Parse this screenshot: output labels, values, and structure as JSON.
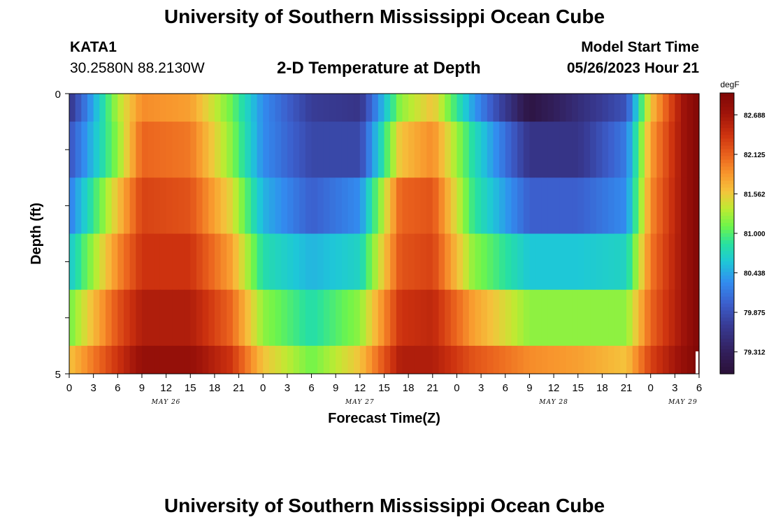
{
  "header": {
    "title": "University of Southern Mississippi Ocean Cube",
    "station_id": "KATA1",
    "coordinates": "30.2580N  88.2130W",
    "plot_title": "2-D Temperature at Depth",
    "model_start_label": "Model Start Time",
    "model_start_value": "05/26/2023 Hour 21"
  },
  "footer": {
    "title": "University of Southern Mississippi Ocean Cube"
  },
  "chart_data": {
    "type": "heatmap",
    "title": "2-D Temperature at Depth",
    "xlabel": "Forecast Time(Z)",
    "ylabel": "Depth (ft)",
    "ylim": [
      0,
      5
    ],
    "y_ticks": [
      "0",
      "5"
    ],
    "x_ticks": [
      "0",
      "3",
      "6",
      "9",
      "12",
      "15",
      "18",
      "21",
      "0",
      "3",
      "6",
      "9",
      "12",
      "15",
      "18",
      "21",
      "0",
      "3",
      "6",
      "9",
      "12",
      "15",
      "18",
      "21",
      "0",
      "3",
      "6"
    ],
    "day_labels": [
      "MAY 26",
      "MAY 27",
      "MAY 28",
      "MAY 29"
    ],
    "x_range_hours": [
      0,
      78
    ],
    "colorbar": {
      "unit": "degF",
      "min": 79.0,
      "max": 83.0,
      "ticks": [
        "82.688",
        "82.125",
        "81.562",
        "81.000",
        "80.438",
        "79.875",
        "79.312"
      ],
      "tick_values": [
        82.688,
        82.125,
        81.562,
        81.0,
        80.438,
        79.875,
        79.312
      ]
    },
    "rows": [
      {
        "depth_range": "0-0.5",
        "hours": [
          0,
          6,
          9,
          15,
          20,
          24,
          30,
          36,
          41,
          45,
          50,
          57,
          63,
          69,
          72,
          76,
          78
        ],
        "values": [
          79.6,
          81.3,
          81.9,
          81.8,
          81.1,
          80.3,
          79.7,
          79.6,
          81.2,
          81.6,
          80.4,
          79.1,
          79.5,
          79.9,
          81.6,
          82.7,
          83.0
        ]
      },
      {
        "depth_range": "0.5-1.5",
        "hours": [
          0,
          6,
          9,
          15,
          20,
          24,
          30,
          36,
          41,
          45,
          50,
          57,
          63,
          69,
          72,
          76,
          78
        ],
        "values": [
          79.9,
          81.2,
          82.1,
          82.0,
          81.2,
          80.3,
          79.8,
          79.8,
          81.6,
          81.9,
          80.8,
          79.6,
          79.6,
          80.2,
          81.8,
          82.7,
          83.0
        ]
      },
      {
        "depth_range": "1.5-2.5",
        "hours": [
          0,
          6,
          9,
          15,
          20,
          24,
          30,
          36,
          41,
          45,
          50,
          57,
          63,
          69,
          72,
          76,
          78
        ],
        "values": [
          80.2,
          81.6,
          82.3,
          82.2,
          81.5,
          80.5,
          80.0,
          80.3,
          82.1,
          82.2,
          80.9,
          80.0,
          80.0,
          80.3,
          81.9,
          82.7,
          83.0
        ]
      },
      {
        "depth_range": "2.5-3.5",
        "hours": [
          0,
          6,
          9,
          15,
          20,
          24,
          30,
          36,
          41,
          45,
          50,
          57,
          63,
          69,
          72,
          76,
          78
        ],
        "values": [
          80.6,
          81.9,
          82.4,
          82.4,
          81.8,
          80.8,
          80.5,
          80.7,
          82.2,
          82.3,
          81.2,
          80.6,
          80.6,
          80.7,
          82.0,
          82.7,
          83.0
        ]
      },
      {
        "depth_range": "3.5-4.5",
        "hours": [
          0,
          6,
          9,
          15,
          20,
          24,
          30,
          36,
          41,
          45,
          50,
          57,
          63,
          69,
          72,
          76,
          78
        ],
        "values": [
          81.1,
          82.2,
          82.6,
          82.6,
          82.1,
          81.2,
          80.8,
          81.2,
          82.4,
          82.5,
          81.8,
          81.2,
          81.2,
          81.2,
          82.1,
          82.7,
          83.0
        ]
      },
      {
        "depth_range": "4.5-5",
        "hours": [
          0,
          6,
          9,
          15,
          20,
          24,
          30,
          36,
          41,
          45,
          50,
          57,
          63,
          69,
          72,
          76,
          78
        ],
        "values": [
          81.6,
          82.4,
          82.8,
          82.8,
          82.4,
          81.6,
          81.1,
          81.6,
          82.6,
          82.6,
          82.2,
          81.9,
          81.8,
          81.6,
          82.3,
          82.8,
          83.0
        ]
      }
    ],
    "missing_note_hour": 78
  }
}
